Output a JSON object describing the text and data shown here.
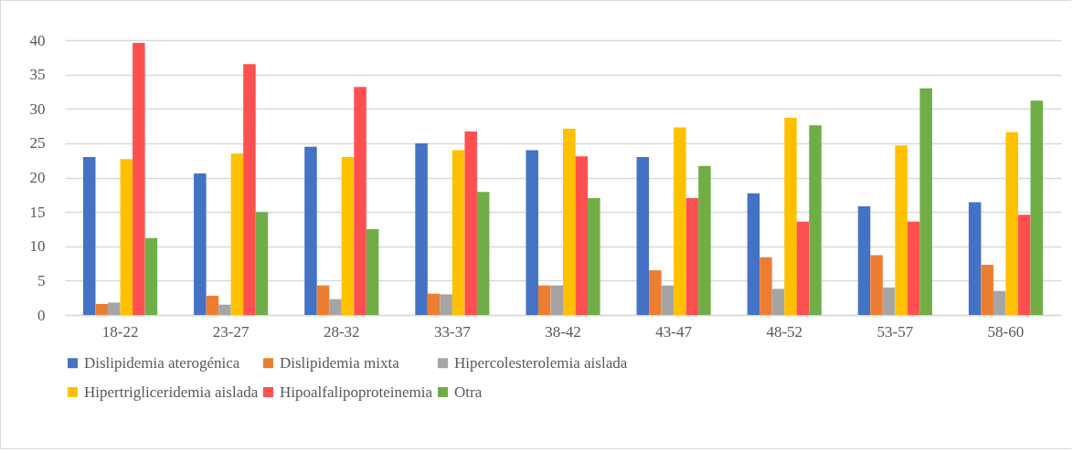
{
  "chart_data": {
    "type": "bar",
    "categories": [
      "18-22",
      "23-27",
      "28-32",
      "33-37",
      "38-42",
      "43-47",
      "48-52",
      "53-57",
      "58-60"
    ],
    "series": [
      {
        "name": "Dislipidemia aterogénica",
        "color": "#4472c4",
        "values": [
          23,
          20.6,
          24.5,
          25,
          24,
          23,
          17.7,
          15.8,
          16.4
        ]
      },
      {
        "name": "Dislipidemia mixta",
        "color": "#ed7d31",
        "values": [
          1.6,
          2.8,
          4.3,
          3.1,
          4.3,
          6.5,
          8.4,
          8.7,
          7.3
        ]
      },
      {
        "name": "Hipercolesterolemia aislada",
        "color": "#a5a5a5",
        "values": [
          1.8,
          1.5,
          2.3,
          3,
          4.3,
          4.3,
          3.8,
          4,
          3.5
        ]
      },
      {
        "name": "Hipertrigliceridemia aislada",
        "color": "#ffc000",
        "values": [
          22.7,
          23.5,
          23,
          24,
          27.1,
          27.3,
          28.7,
          24.7,
          26.6
        ]
      },
      {
        "name": "Hipoalfalipoproteinemia",
        "color": "#ff5050",
        "values": [
          39.6,
          36.5,
          33.2,
          26.7,
          23.1,
          17,
          13.6,
          13.6,
          14.6
        ]
      },
      {
        "name": "Otra",
        "color": "#70ad47",
        "values": [
          11.2,
          15,
          12.5,
          17.9,
          17,
          21.7,
          27.6,
          33,
          31.2
        ]
      }
    ],
    "ylim": [
      0,
      40
    ],
    "yticks": [
      0,
      5,
      10,
      15,
      20,
      25,
      30,
      35,
      40
    ],
    "grid": "y",
    "legend": "bottom"
  }
}
